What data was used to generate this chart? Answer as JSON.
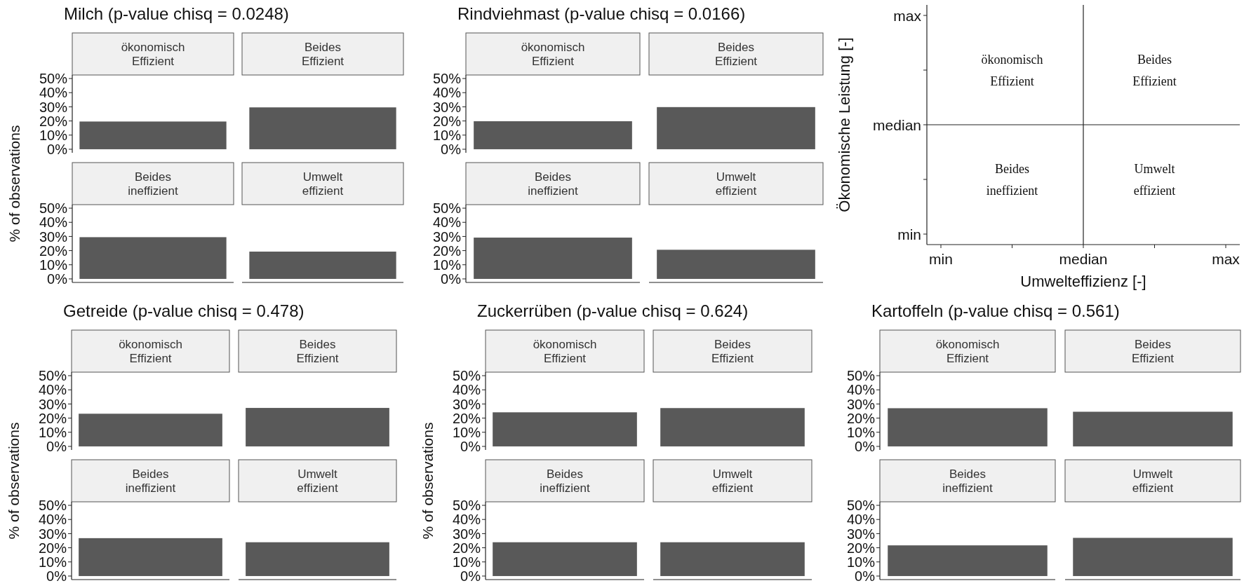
{
  "chart_data": [
    {
      "type": "bar",
      "title": "Milch (p-value chisq = 0.0248)",
      "ylabel": "% of observations",
      "categories": [
        "ökonomisch\nEffizient",
        "Beides\nEffizient"
      ],
      "values": [
        19.6,
        29.6
      ],
      "color": "#595959",
      "ylim": [
        -2.5,
        52.5
      ],
      "yticks": [
        {
          "value": 0,
          "label": "0%"
        },
        {
          "value": 10,
          "label": "10%"
        },
        {
          "value": 20,
          "label": "20%"
        },
        {
          "value": 30,
          "label": "30%"
        },
        {
          "value": 40,
          "label": "40%"
        },
        {
          "value": 50,
          "label": "50%"
        }
      ]
    },
    {
      "type": "bar",
      "categories": [
        "Beides\nineffizient",
        "Umwelt\neffizient"
      ],
      "values": [
        29.5,
        19.3
      ],
      "color": "#595959",
      "ylim": [
        -2.5,
        52.5
      ],
      "yticks": [
        {
          "value": 0,
          "label": "0%"
        },
        {
          "value": 10,
          "label": "10%"
        },
        {
          "value": 20,
          "label": "20%"
        },
        {
          "value": 30,
          "label": "30%"
        },
        {
          "value": 40,
          "label": "40%"
        },
        {
          "value": 50,
          "label": "50%"
        }
      ]
    },
    {
      "type": "bar",
      "title": "Rindviehmast (p-value chisq = 0.0166)",
      "categories": [
        "ökonomisch\nEffizient",
        "Beides\nEffizient"
      ],
      "values": [
        19.8,
        29.8
      ],
      "color": "#595959",
      "ylim": [
        -2.5,
        52.5
      ],
      "yticks": [
        {
          "value": 0,
          "label": "0%"
        },
        {
          "value": 10,
          "label": "10%"
        },
        {
          "value": 20,
          "label": "20%"
        },
        {
          "value": 30,
          "label": "30%"
        },
        {
          "value": 40,
          "label": "40%"
        },
        {
          "value": 50,
          "label": "50%"
        }
      ]
    },
    {
      "type": "bar",
      "categories": [
        "Beides\nineffizient",
        "Umwelt\neffizient"
      ],
      "values": [
        29.2,
        20.6
      ],
      "color": "#595959",
      "ylim": [
        -2.5,
        52.5
      ],
      "yticks": [
        {
          "value": 0,
          "label": "0%"
        },
        {
          "value": 10,
          "label": "10%"
        },
        {
          "value": 20,
          "label": "20%"
        },
        {
          "value": 30,
          "label": "30%"
        },
        {
          "value": 40,
          "label": "40%"
        },
        {
          "value": 50,
          "label": "50%"
        }
      ]
    },
    {
      "type": "other",
      "xlabel": "Umwelteffizienz [-]",
      "ylabel": "Ökonomische Leistung [-]",
      "categories": [
        "min",
        null,
        "median",
        null,
        "max"
      ],
      "annotations": [
        "ökonomisch\nEffizient",
        "Beides\nEffizient",
        "Beides\nineffizient",
        "Umwelt\neffizient",
        "max",
        "median",
        "min"
      ]
    },
    {
      "type": "bar",
      "title": "Getreide (p-value chisq = 0.478)",
      "ylabel": "% of observations",
      "categories": [
        "ökonomisch\nEffizient",
        "Beides\nEffizient"
      ],
      "values": [
        23.1,
        27.2
      ],
      "color": "#595959",
      "ylim": [
        -2.5,
        52.5
      ],
      "yticks": [
        {
          "value": 0,
          "label": "0%"
        },
        {
          "value": 10,
          "label": "10%"
        },
        {
          "value": 20,
          "label": "20%"
        },
        {
          "value": 30,
          "label": "30%"
        },
        {
          "value": 40,
          "label": "40%"
        },
        {
          "value": 50,
          "label": "50%"
        }
      ]
    },
    {
      "type": "bar",
      "categories": [
        "Beides\nineffizient",
        "Umwelt\neffizient"
      ],
      "values": [
        26.8,
        23.9
      ],
      "color": "#595959",
      "ylim": [
        -2.5,
        52.5
      ],
      "yticks": [
        {
          "value": 0,
          "label": "0%"
        },
        {
          "value": 10,
          "label": "10%"
        },
        {
          "value": 20,
          "label": "20%"
        },
        {
          "value": 30,
          "label": "30%"
        },
        {
          "value": 40,
          "label": "40%"
        },
        {
          "value": 50,
          "label": "50%"
        }
      ]
    },
    {
      "type": "bar",
      "title": "Zuckerrüben (p-value chisq = 0.624)",
      "ylabel": "% of observations",
      "categories": [
        "ökonomisch\nEffizient",
        "Beides\nEffizient"
      ],
      "values": [
        24.1,
        27.1
      ],
      "color": "#595959",
      "ylim": [
        -2.5,
        52.5
      ],
      "yticks": [
        {
          "value": 0,
          "label": "0%"
        },
        {
          "value": 10,
          "label": "10%"
        },
        {
          "value": 20,
          "label": "20%"
        },
        {
          "value": 30,
          "label": "30%"
        },
        {
          "value": 40,
          "label": "40%"
        },
        {
          "value": 50,
          "label": "50%"
        }
      ]
    },
    {
      "type": "bar",
      "categories": [
        "Beides\nineffizient",
        "Umwelt\neffizient"
      ],
      "values": [
        23.9,
        23.9
      ],
      "color": "#595959",
      "ylim": [
        -2.5,
        52.5
      ],
      "yticks": [
        {
          "value": 0,
          "label": "0%"
        },
        {
          "value": 10,
          "label": "10%"
        },
        {
          "value": 20,
          "label": "20%"
        },
        {
          "value": 30,
          "label": "30%"
        },
        {
          "value": 40,
          "label": "40%"
        },
        {
          "value": 50,
          "label": "50%"
        }
      ]
    },
    {
      "type": "bar",
      "title": "Kartoffeln (p-value chisq = 0.561)",
      "categories": [
        "ökonomisch\nEffizient",
        "Beides\nEffizient"
      ],
      "values": [
        27.0,
        24.5
      ],
      "color": "#595959",
      "ylim": [
        -2.5,
        52.5
      ],
      "yticks": [
        {
          "value": 0,
          "label": "0%"
        },
        {
          "value": 10,
          "label": "10%"
        },
        {
          "value": 20,
          "label": "20%"
        },
        {
          "value": 30,
          "label": "30%"
        },
        {
          "value": 40,
          "label": "40%"
        },
        {
          "value": 50,
          "label": "50%"
        }
      ]
    },
    {
      "type": "bar",
      "categories": [
        "Beides\nineffizient",
        "Umwelt\neffizient"
      ],
      "values": [
        21.7,
        27.0
      ],
      "color": "#595959",
      "ylim": [
        -2.5,
        52.5
      ],
      "yticks": [
        {
          "value": 0,
          "label": "0%"
        },
        {
          "value": 10,
          "label": "10%"
        },
        {
          "value": 20,
          "label": "20%"
        },
        {
          "value": 30,
          "label": "30%"
        },
        {
          "value": 40,
          "label": "40%"
        },
        {
          "value": 50,
          "label": "50%"
        }
      ]
    }
  ]
}
